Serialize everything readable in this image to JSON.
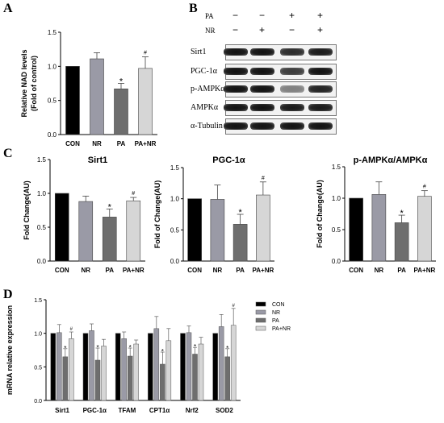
{
  "panels": {
    "A": "A",
    "B": "B",
    "C": "C",
    "D": "D"
  },
  "blot": {
    "conditions": [
      {
        "label": "PA",
        "values": [
          "−",
          "−",
          "+",
          "+"
        ]
      },
      {
        "label": "NR",
        "values": [
          "−",
          "+",
          "−",
          "+"
        ]
      }
    ],
    "proteins": [
      "Sirt1",
      "PGC-1α",
      "p-AMPKα",
      "AMPKα",
      "α-Tubulin"
    ],
    "intensities": [
      [
        1.0,
        1.0,
        0.85,
        0.95
      ],
      [
        1.0,
        1.0,
        0.75,
        1.0
      ],
      [
        1.0,
        1.0,
        0.35,
        0.9
      ],
      [
        1.0,
        1.0,
        0.95,
        0.95
      ],
      [
        1.0,
        1.0,
        1.0,
        1.0
      ]
    ]
  },
  "colors": {
    "CON": "#000000",
    "NR": "#9a9aa6",
    "PA": "#6e6e6e",
    "PA+NR": "#d6d6d6"
  },
  "chart_data": [
    {
      "id": "A",
      "type": "bar",
      "categories": [
        "CON",
        "NR",
        "PA",
        "PA+NR"
      ],
      "values": [
        1.0,
        1.11,
        0.67,
        0.97
      ],
      "errors": [
        0,
        0.09,
        0.08,
        0.17
      ],
      "annotations": [
        "",
        "",
        "*",
        "#"
      ],
      "title": "",
      "xlabel": "",
      "ylabel_lines": [
        "Relative NAD levels",
        "(Fold of control)"
      ],
      "ylim": [
        0,
        1.5
      ],
      "yticks": [
        "0.0",
        "0.5",
        "1.0",
        "1.5"
      ]
    },
    {
      "id": "C1",
      "type": "bar",
      "categories": [
        "CON",
        "NR",
        "PA",
        "PA+NR"
      ],
      "values": [
        1.0,
        0.88,
        0.65,
        0.89
      ],
      "errors": [
        0,
        0.08,
        0.12,
        0.05
      ],
      "annotations": [
        "",
        "",
        "*",
        "#"
      ],
      "title": "Sirt1",
      "xlabel": "",
      "ylabel_lines": [
        "Fold  Change(AU)"
      ],
      "ylim": [
        0,
        1.5
      ],
      "yticks": [
        "0.0",
        "0.5",
        "1.0",
        "1.5"
      ]
    },
    {
      "id": "C2",
      "type": "bar",
      "categories": [
        "CON",
        "NR",
        "PA",
        "PA+NR"
      ],
      "values": [
        1.0,
        0.99,
        0.59,
        1.06
      ],
      "errors": [
        0,
        0.23,
        0.16,
        0.21
      ],
      "annotations": [
        "",
        "",
        "*",
        "#"
      ],
      "title": "PGC-1α",
      "xlabel": "",
      "ylabel_lines": [
        "Fold of Change(AU)"
      ],
      "ylim": [
        0,
        1.5
      ],
      "yticks": [
        "0.0",
        "0.5",
        "1.0",
        "1.5"
      ]
    },
    {
      "id": "C3",
      "type": "bar",
      "categories": [
        "CON",
        "NR",
        "PA",
        "PA+NR"
      ],
      "values": [
        1.0,
        1.06,
        0.61,
        1.03
      ],
      "errors": [
        0,
        0.2,
        0.12,
        0.09
      ],
      "annotations": [
        "",
        "",
        "*",
        "#"
      ],
      "title": "p-AMPKα/AMPKα",
      "xlabel": "",
      "ylabel_lines": [
        "Fold of Change(AU)"
      ],
      "ylim": [
        0,
        1.5
      ],
      "yticks": [
        "0.0",
        "0.5",
        "1.0",
        "1.5"
      ]
    },
    {
      "id": "D",
      "type": "bar",
      "categories": [
        "Sirt1",
        "PGC-1α",
        "TFAM",
        "CPT1α",
        "Nrf2",
        "SOD2"
      ],
      "series": [
        {
          "name": "CON",
          "values": [
            1.0,
            1.0,
            1.0,
            1.0,
            1.0,
            1.0
          ],
          "errors": [
            0,
            0,
            0,
            0,
            0,
            0
          ],
          "annotations": [
            "",
            "",
            "",
            "",
            "",
            ""
          ]
        },
        {
          "name": "NR",
          "values": [
            1.01,
            1.04,
            0.92,
            1.07,
            1.01,
            1.1
          ],
          "errors": [
            0.12,
            0.1,
            0.1,
            0.18,
            0.1,
            0.18
          ],
          "annotations": [
            "",
            "",
            "",
            "",
            "",
            ""
          ]
        },
        {
          "name": "PA",
          "values": [
            0.65,
            0.6,
            0.66,
            0.54,
            0.69,
            0.65
          ],
          "errors": [
            0.12,
            0.18,
            0.12,
            0.18,
            0.1,
            0.12
          ],
          "annotations": [
            "*",
            "*",
            "*",
            "*",
            "*",
            "*"
          ]
        },
        {
          "name": "PA+NR",
          "values": [
            0.92,
            0.81,
            0.84,
            0.89,
            0.84,
            1.12
          ],
          "errors": [
            0.1,
            0.1,
            0.06,
            0.18,
            0.1,
            0.25
          ],
          "annotations": [
            "#",
            "",
            "",
            "",
            "",
            "#"
          ]
        }
      ],
      "title": "",
      "xlabel": "",
      "ylabel_lines": [
        "mRNA relative expression"
      ],
      "ylim": [
        0,
        1.5
      ],
      "yticks": [
        "0.0",
        "0.5",
        "1.0",
        "1.5"
      ],
      "legend": "top-right"
    }
  ]
}
